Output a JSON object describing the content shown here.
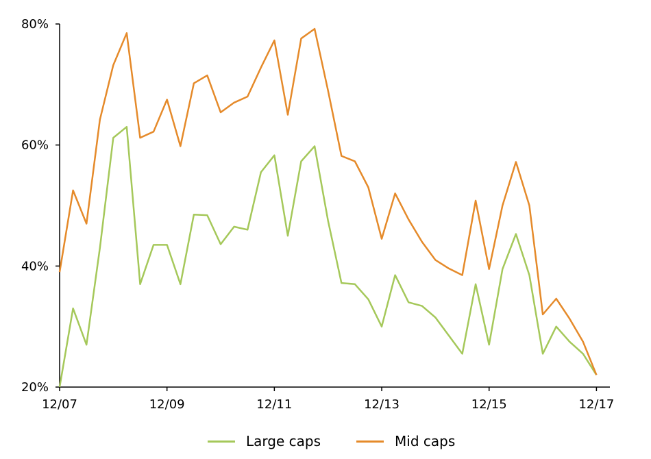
{
  "chart_data": {
    "type": "line",
    "x_ticks": [
      "12/07",
      "12/09",
      "12/11",
      "12/13",
      "12/15",
      "12/17"
    ],
    "y_ticks": [
      "20%",
      "40%",
      "60%",
      "80%"
    ],
    "ylim": [
      20,
      80
    ],
    "xlim": [
      2007,
      2017.25
    ],
    "grid": false,
    "legend_position": "bottom",
    "series": [
      {
        "name": "Large caps",
        "color": "#a5c85a",
        "x": [
          2007.0,
          2007.25,
          2007.5,
          2007.75,
          2008.0,
          2008.25,
          2008.5,
          2008.75,
          2009.0,
          2009.25,
          2009.5,
          2009.75,
          2010.0,
          2010.25,
          2010.5,
          2010.75,
          2011.0,
          2011.25,
          2011.5,
          2011.75,
          2012.0,
          2012.25,
          2012.5,
          2012.75,
          2013.0,
          2013.25,
          2013.5,
          2013.75,
          2014.0,
          2014.25,
          2014.5,
          2014.75,
          2015.0,
          2015.25,
          2015.5,
          2015.75,
          2016.0,
          2016.25,
          2016.5,
          2016.75,
          2017.0
        ],
        "values": [
          20.0,
          33.0,
          27.0,
          43.0,
          61.2,
          63.0,
          37.0,
          43.5,
          43.5,
          37.0,
          48.5,
          48.4,
          43.6,
          46.5,
          46.0,
          55.5,
          58.3,
          45.0,
          57.3,
          59.8,
          47.5,
          37.2,
          37.0,
          34.5,
          30.0,
          38.5,
          34.0,
          33.4,
          31.5,
          28.5,
          25.5,
          37.0,
          27.0,
          39.5,
          45.3,
          38.5,
          25.5,
          30.0,
          27.5,
          25.5,
          22.0
        ]
      },
      {
        "name": "Mid caps",
        "color": "#e58a2a",
        "x": [
          2007.0,
          2007.25,
          2007.5,
          2007.75,
          2008.0,
          2008.25,
          2008.5,
          2008.75,
          2009.0,
          2009.25,
          2009.5,
          2009.75,
          2010.0,
          2010.25,
          2010.5,
          2010.75,
          2011.0,
          2011.25,
          2011.5,
          2011.75,
          2012.0,
          2012.25,
          2012.5,
          2012.75,
          2013.0,
          2013.25,
          2013.5,
          2013.75,
          2014.0,
          2014.25,
          2014.5,
          2014.75,
          2015.0,
          2015.25,
          2015.5,
          2015.75,
          2016.0,
          2016.25,
          2016.5,
          2016.75,
          2017.0
        ],
        "values": [
          39.0,
          52.5,
          47.0,
          64.2,
          73.2,
          78.5,
          61.2,
          62.2,
          67.5,
          59.8,
          70.2,
          71.5,
          65.4,
          67.0,
          68.0,
          72.8,
          77.3,
          65.0,
          77.6,
          79.2,
          69.0,
          58.2,
          57.3,
          53.0,
          44.5,
          52.0,
          47.7,
          44.0,
          41.0,
          39.6,
          38.5,
          50.8,
          39.5,
          50.0,
          57.2,
          50.0,
          32.0,
          34.6,
          31.3,
          27.5,
          22.0
        ]
      }
    ]
  }
}
